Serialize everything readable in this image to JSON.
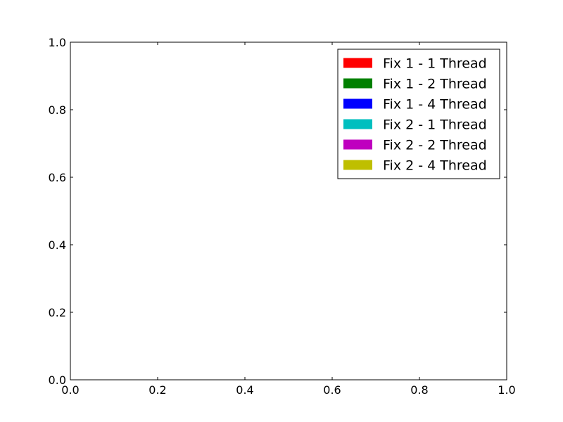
{
  "chart_data": {
    "type": "bar",
    "title": "",
    "xlabel": "",
    "ylabel": "",
    "xlim": [
      0.0,
      1.0
    ],
    "ylim": [
      0.0,
      1.0
    ],
    "x_ticks": [
      "0.0",
      "0.2",
      "0.4",
      "0.6",
      "0.8",
      "1.0"
    ],
    "y_ticks": [
      "0.0",
      "0.2",
      "0.4",
      "0.6",
      "0.8",
      "1.0"
    ],
    "grid": false,
    "legend_position": "upper right",
    "series": [
      {
        "name": "Fix 1 - 1 Thread",
        "color": "#ff0000",
        "values": []
      },
      {
        "name": "Fix 1 - 2 Thread",
        "color": "#008000",
        "values": []
      },
      {
        "name": "Fix 1 - 4 Thread",
        "color": "#0000ff",
        "values": []
      },
      {
        "name": "Fix 2 - 1 Thread",
        "color": "#00bfbf",
        "values": []
      },
      {
        "name": "Fix 2 - 2 Thread",
        "color": "#bf00bf",
        "values": []
      },
      {
        "name": "Fix 2 - 4 Thread",
        "color": "#bfbf00",
        "values": []
      }
    ]
  }
}
